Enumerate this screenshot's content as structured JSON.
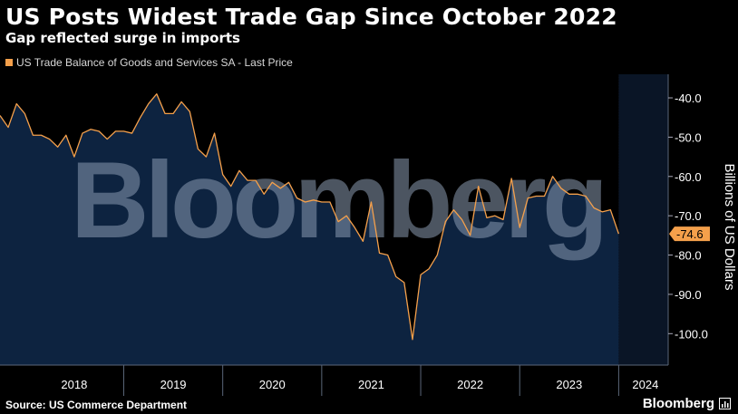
{
  "header": {
    "title": "US Posts Widest Trade Gap Since October 2022",
    "subtitle": "Gap reflected surge in imports"
  },
  "legend": {
    "label": "US Trade Balance of Goods and Services SA - Last Price",
    "color": "#f5a04b"
  },
  "footer": {
    "source": "Source: US Commerce Department",
    "brand": "Bloomberg"
  },
  "watermark": "Bloomberg",
  "colors": {
    "background": "#000000",
    "area_fill": "#0d2340",
    "line": "#f5a04b"
  },
  "chart_data": {
    "type": "area",
    "ylabel": "Billions of US Dollars",
    "ylim": [
      -108,
      -34
    ],
    "y_ticks": [
      -40,
      -50,
      -60,
      -70,
      -80,
      -90,
      -100
    ],
    "y_tick_labels": [
      "-40.0",
      "-50.0",
      "-60.0",
      "-70.0",
      "-80.0",
      "-90.0",
      "-100.0"
    ],
    "x_labels": [
      "2018",
      "2019",
      "2020",
      "2021",
      "2022",
      "2023",
      "2024"
    ],
    "x_label_positions": [
      2018.5,
      2019.5,
      2020.5,
      2021.5,
      2022.5,
      2023.5,
      2024.27
    ],
    "x_ticks": [
      2019,
      2020,
      2021,
      2022,
      2023,
      2024
    ],
    "xlim": [
      2017.75,
      2024.5
    ],
    "last_value": -74.6,
    "last_value_label": "-74.6",
    "series": [
      {
        "points": [
          [
            2017.75,
            -44.5
          ],
          [
            2017.833,
            -47.5
          ],
          [
            2017.917,
            -41.5
          ],
          [
            2018.0,
            -44.0
          ],
          [
            2018.083,
            -49.5
          ],
          [
            2018.167,
            -49.5
          ],
          [
            2018.25,
            -50.5
          ],
          [
            2018.333,
            -52.5
          ],
          [
            2018.417,
            -49.5
          ],
          [
            2018.5,
            -55.0
          ],
          [
            2018.583,
            -49.0
          ],
          [
            2018.667,
            -48.0
          ],
          [
            2018.75,
            -48.5
          ],
          [
            2018.833,
            -50.5
          ],
          [
            2018.917,
            -48.5
          ],
          [
            2019.0,
            -48.5
          ],
          [
            2019.083,
            -49.0
          ],
          [
            2019.167,
            -45.0
          ],
          [
            2019.25,
            -41.5
          ],
          [
            2019.333,
            -39.0
          ],
          [
            2019.417,
            -44.0
          ],
          [
            2019.5,
            -44.0
          ],
          [
            2019.583,
            -41.0
          ],
          [
            2019.667,
            -43.5
          ],
          [
            2019.75,
            -53.0
          ],
          [
            2019.833,
            -55.0
          ],
          [
            2019.917,
            -49.0
          ],
          [
            2020.0,
            -59.5
          ],
          [
            2020.083,
            -62.5
          ],
          [
            2020.167,
            -58.5
          ],
          [
            2020.25,
            -61.0
          ],
          [
            2020.333,
            -61.0
          ],
          [
            2020.417,
            -64.5
          ],
          [
            2020.5,
            -61.5
          ],
          [
            2020.583,
            -63.0
          ],
          [
            2020.667,
            -61.5
          ],
          [
            2020.75,
            -65.5
          ],
          [
            2020.833,
            -66.5
          ],
          [
            2020.917,
            -66.0
          ],
          [
            2021.0,
            -66.5
          ],
          [
            2021.083,
            -66.5
          ],
          [
            2021.167,
            -71.5
          ],
          [
            2021.25,
            -70.0
          ],
          [
            2021.333,
            -73.0
          ],
          [
            2021.417,
            -76.5
          ],
          [
            2021.5,
            -66.5
          ],
          [
            2021.583,
            -79.5
          ],
          [
            2021.667,
            -80.0
          ],
          [
            2021.75,
            -85.5
          ],
          [
            2021.833,
            -87.0
          ],
          [
            2021.917,
            -101.5
          ],
          [
            2022.0,
            -85.0
          ],
          [
            2022.083,
            -83.5
          ],
          [
            2022.167,
            -80.0
          ],
          [
            2022.25,
            -71.5
          ],
          [
            2022.333,
            -68.5
          ],
          [
            2022.417,
            -71.0
          ],
          [
            2022.5,
            -75.0
          ],
          [
            2022.583,
            -62.5
          ],
          [
            2022.667,
            -70.5
          ],
          [
            2022.75,
            -70.0
          ],
          [
            2022.833,
            -71.0
          ],
          [
            2022.917,
            -60.5
          ],
          [
            2023.0,
            -73.0
          ],
          [
            2023.083,
            -65.5
          ],
          [
            2023.167,
            -65.0
          ],
          [
            2023.25,
            -65.0
          ],
          [
            2023.333,
            -60.0
          ],
          [
            2023.417,
            -63.0
          ],
          [
            2023.5,
            -64.5
          ],
          [
            2023.583,
            -64.5
          ],
          [
            2023.667,
            -65.0
          ],
          [
            2023.75,
            -68.0
          ],
          [
            2023.833,
            -69.0
          ],
          [
            2023.917,
            -68.5
          ],
          [
            2024.0,
            -74.6
          ]
        ]
      }
    ]
  }
}
